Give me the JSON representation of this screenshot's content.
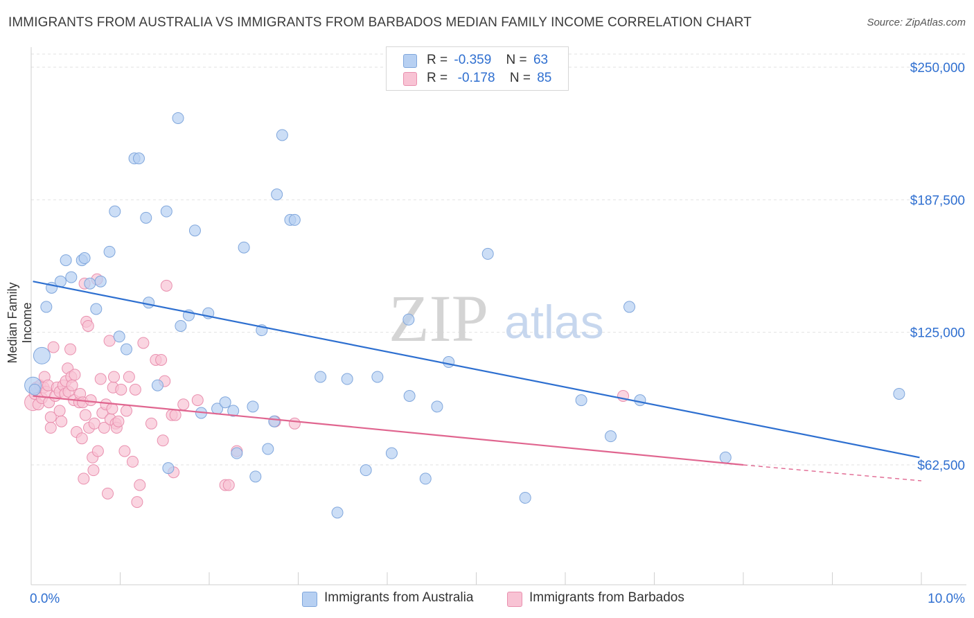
{
  "header": {
    "title": "IMMIGRANTS FROM AUSTRALIA VS IMMIGRANTS FROM BARBADOS MEDIAN FAMILY INCOME CORRELATION CHART",
    "source": "Source: ZipAtlas.com"
  },
  "watermark": {
    "zip": "ZIP",
    "atlas": "atlas"
  },
  "legend": {
    "rows": [
      {
        "r_label": "R =",
        "r_value": "-0.359",
        "n_label": "N =",
        "n_value": "63"
      },
      {
        "r_label": "R =",
        "r_value": " -0.178",
        "n_label": "N =",
        "n_value": "85"
      }
    ]
  },
  "colors": {
    "australia_fill": "#b7d0f2",
    "australia_stroke": "#7fa6dc",
    "australia_line": "#2d6fd0",
    "barbados_fill": "#f8c3d4",
    "barbados_stroke": "#e98fae",
    "barbados_line": "#e0658f",
    "axis_label": "#2f6fd0",
    "grid": "#e2e2e2"
  },
  "chart_data": {
    "type": "scatter",
    "title": "IMMIGRANTS FROM AUSTRALIA VS IMMIGRANTS FROM BARBADOS MEDIAN FAMILY INCOME CORRELATION CHART",
    "xlabel": "",
    "ylabel": "Median Family Income",
    "xlim": [
      0,
      10
    ],
    "ylim": [
      22000,
      260000
    ],
    "x_tick_labels": [
      "0.0%",
      "10.0%"
    ],
    "y_ticks": [
      62500,
      125000,
      187500,
      250000
    ],
    "y_tick_labels": [
      "$62,500",
      "$125,000",
      "$187,500",
      "$250,000"
    ],
    "grid": true,
    "legend_position": "top-center",
    "series": [
      {
        "name": "Immigrants from Australia",
        "r": -0.359,
        "n": 63,
        "trend": {
          "x": [
            0.02,
            9.98
          ],
          "y": [
            149000,
            66000
          ]
        },
        "points": [
          {
            "x": 0.02,
            "y": 100000,
            "big": true
          },
          {
            "x": 0.04,
            "y": 98000
          },
          {
            "x": 0.12,
            "y": 114000,
            "big": true
          },
          {
            "x": 0.17,
            "y": 137000
          },
          {
            "x": 0.23,
            "y": 146000
          },
          {
            "x": 0.33,
            "y": 149000
          },
          {
            "x": 0.39,
            "y": 159000
          },
          {
            "x": 0.45,
            "y": 151000
          },
          {
            "x": 0.57,
            "y": 159000
          },
          {
            "x": 0.6,
            "y": 160000
          },
          {
            "x": 0.66,
            "y": 148000
          },
          {
            "x": 0.73,
            "y": 136000
          },
          {
            "x": 0.78,
            "y": 149000
          },
          {
            "x": 0.88,
            "y": 163000
          },
          {
            "x": 0.94,
            "y": 182000
          },
          {
            "x": 0.99,
            "y": 123000
          },
          {
            "x": 1.07,
            "y": 117000
          },
          {
            "x": 1.16,
            "y": 207000
          },
          {
            "x": 1.21,
            "y": 207000
          },
          {
            "x": 1.29,
            "y": 179000
          },
          {
            "x": 1.32,
            "y": 139000
          },
          {
            "x": 1.42,
            "y": 100000
          },
          {
            "x": 1.52,
            "y": 182000
          },
          {
            "x": 1.54,
            "y": 61000
          },
          {
            "x": 1.65,
            "y": 226000
          },
          {
            "x": 1.68,
            "y": 128000
          },
          {
            "x": 1.77,
            "y": 133000
          },
          {
            "x": 1.84,
            "y": 173000
          },
          {
            "x": 1.91,
            "y": 87000
          },
          {
            "x": 1.99,
            "y": 134000
          },
          {
            "x": 2.09,
            "y": 89000
          },
          {
            "x": 2.18,
            "y": 92000
          },
          {
            "x": 2.27,
            "y": 88000
          },
          {
            "x": 2.31,
            "y": 68000
          },
          {
            "x": 2.39,
            "y": 165000
          },
          {
            "x": 2.49,
            "y": 90000
          },
          {
            "x": 2.52,
            "y": 57000
          },
          {
            "x": 2.59,
            "y": 126000
          },
          {
            "x": 2.66,
            "y": 70000
          },
          {
            "x": 2.73,
            "y": 83000
          },
          {
            "x": 2.76,
            "y": 190000
          },
          {
            "x": 2.82,
            "y": 218000
          },
          {
            "x": 2.91,
            "y": 178000
          },
          {
            "x": 2.96,
            "y": 178000
          },
          {
            "x": 3.25,
            "y": 104000
          },
          {
            "x": 3.44,
            "y": 40000
          },
          {
            "x": 3.55,
            "y": 103000
          },
          {
            "x": 3.76,
            "y": 60000
          },
          {
            "x": 3.89,
            "y": 104000
          },
          {
            "x": 4.05,
            "y": 68000
          },
          {
            "x": 4.24,
            "y": 131000
          },
          {
            "x": 4.25,
            "y": 95000
          },
          {
            "x": 4.43,
            "y": 56000
          },
          {
            "x": 4.56,
            "y": 90000
          },
          {
            "x": 4.69,
            "y": 111000
          },
          {
            "x": 5.13,
            "y": 162000
          },
          {
            "x": 5.55,
            "y": 47000
          },
          {
            "x": 6.18,
            "y": 93000
          },
          {
            "x": 6.51,
            "y": 76000
          },
          {
            "x": 6.72,
            "y": 137000
          },
          {
            "x": 6.84,
            "y": 93000
          },
          {
            "x": 7.8,
            "y": 66000
          },
          {
            "x": 9.75,
            "y": 96000
          }
        ]
      },
      {
        "name": "Immigrants from Barbados",
        "r": -0.178,
        "n": 85,
        "trend": {
          "x": [
            0.02,
            8.0,
            10.0
          ],
          "y": [
            95000,
            62500,
            55000
          ],
          "dashed_from": 8.0
        },
        "points": [
          {
            "x": 0.02,
            "y": 92000,
            "big": true
          },
          {
            "x": 0.04,
            "y": 96000
          },
          {
            "x": 0.06,
            "y": 99000
          },
          {
            "x": 0.08,
            "y": 91000
          },
          {
            "x": 0.1,
            "y": 100000
          },
          {
            "x": 0.12,
            "y": 94000
          },
          {
            "x": 0.14,
            "y": 99000
          },
          {
            "x": 0.15,
            "y": 104000
          },
          {
            "x": 0.17,
            "y": 97000
          },
          {
            "x": 0.19,
            "y": 100000
          },
          {
            "x": 0.2,
            "y": 92000
          },
          {
            "x": 0.22,
            "y": 85000
          },
          {
            "x": 0.22,
            "y": 80000
          },
          {
            "x": 0.25,
            "y": 118000
          },
          {
            "x": 0.27,
            "y": 95000
          },
          {
            "x": 0.29,
            "y": 99000
          },
          {
            "x": 0.32,
            "y": 97000
          },
          {
            "x": 0.32,
            "y": 88000
          },
          {
            "x": 0.34,
            "y": 83000
          },
          {
            "x": 0.36,
            "y": 100000
          },
          {
            "x": 0.38,
            "y": 96000
          },
          {
            "x": 0.39,
            "y": 102000
          },
          {
            "x": 0.41,
            "y": 108000
          },
          {
            "x": 0.42,
            "y": 97000
          },
          {
            "x": 0.44,
            "y": 117000
          },
          {
            "x": 0.45,
            "y": 104000
          },
          {
            "x": 0.46,
            "y": 100000
          },
          {
            "x": 0.48,
            "y": 93000
          },
          {
            "x": 0.49,
            "y": 105000
          },
          {
            "x": 0.51,
            "y": 78000
          },
          {
            "x": 0.54,
            "y": 92000
          },
          {
            "x": 0.55,
            "y": 96000
          },
          {
            "x": 0.57,
            "y": 75000
          },
          {
            "x": 0.58,
            "y": 92000
          },
          {
            "x": 0.59,
            "y": 56000
          },
          {
            "x": 0.6,
            "y": 148000
          },
          {
            "x": 0.61,
            "y": 86000
          },
          {
            "x": 0.62,
            "y": 130000
          },
          {
            "x": 0.64,
            "y": 128000
          },
          {
            "x": 0.65,
            "y": 80000
          },
          {
            "x": 0.67,
            "y": 93000
          },
          {
            "x": 0.69,
            "y": 66000
          },
          {
            "x": 0.7,
            "y": 60000
          },
          {
            "x": 0.71,
            "y": 82000
          },
          {
            "x": 0.74,
            "y": 150000
          },
          {
            "x": 0.75,
            "y": 69000
          },
          {
            "x": 0.78,
            "y": 103000
          },
          {
            "x": 0.8,
            "y": 87000
          },
          {
            "x": 0.82,
            "y": 80000
          },
          {
            "x": 0.84,
            "y": 91000
          },
          {
            "x": 0.86,
            "y": 49000
          },
          {
            "x": 0.88,
            "y": 121000
          },
          {
            "x": 0.89,
            "y": 84000
          },
          {
            "x": 0.91,
            "y": 89000
          },
          {
            "x": 0.92,
            "y": 99000
          },
          {
            "x": 0.93,
            "y": 104000
          },
          {
            "x": 0.95,
            "y": 82000
          },
          {
            "x": 0.96,
            "y": 80000
          },
          {
            "x": 0.98,
            "y": 83000
          },
          {
            "x": 1.01,
            "y": 98000
          },
          {
            "x": 1.05,
            "y": 69000
          },
          {
            "x": 1.07,
            "y": 88000
          },
          {
            "x": 1.1,
            "y": 104000
          },
          {
            "x": 1.14,
            "y": 64000
          },
          {
            "x": 1.17,
            "y": 98000
          },
          {
            "x": 1.19,
            "y": 45000
          },
          {
            "x": 1.22,
            "y": 53000
          },
          {
            "x": 1.26,
            "y": 120000
          },
          {
            "x": 1.35,
            "y": 82000
          },
          {
            "x": 1.4,
            "y": 112000
          },
          {
            "x": 1.46,
            "y": 112000
          },
          {
            "x": 1.48,
            "y": 74000
          },
          {
            "x": 1.5,
            "y": 102000
          },
          {
            "x": 1.52,
            "y": 147000
          },
          {
            "x": 1.58,
            "y": 86000
          },
          {
            "x": 1.6,
            "y": 59000
          },
          {
            "x": 1.62,
            "y": 86000
          },
          {
            "x": 1.71,
            "y": 91000
          },
          {
            "x": 1.87,
            "y": 93000
          },
          {
            "x": 2.18,
            "y": 53000
          },
          {
            "x": 2.22,
            "y": 53000
          },
          {
            "x": 2.31,
            "y": 69000
          },
          {
            "x": 2.74,
            "y": 83000
          },
          {
            "x": 2.96,
            "y": 82000
          },
          {
            "x": 6.65,
            "y": 95000
          }
        ]
      }
    ]
  },
  "bottom_legend": [
    "Immigrants from Australia",
    "Immigrants from Barbados"
  ]
}
